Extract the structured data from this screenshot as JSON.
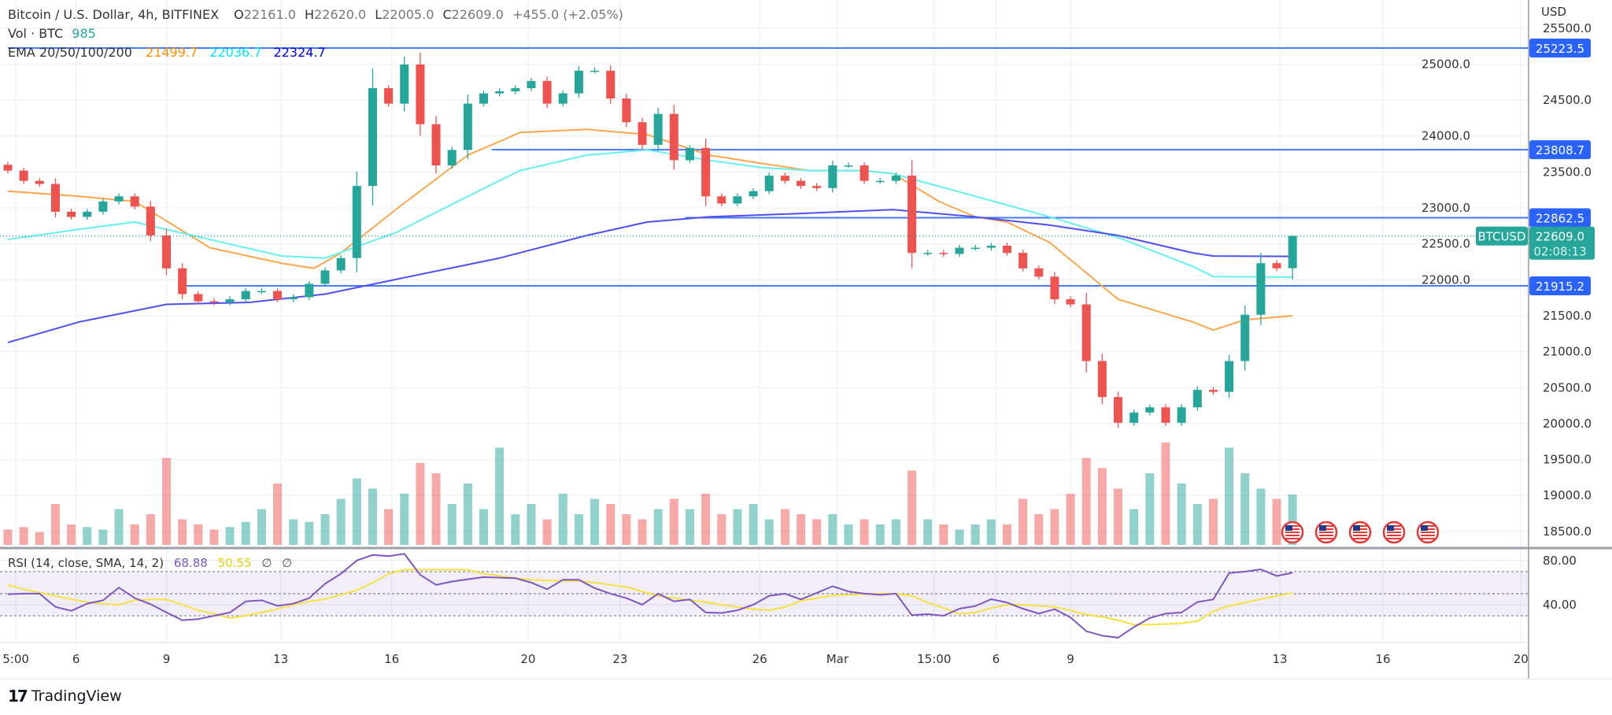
{
  "header": {
    "symbol_title": "Bitcoin / U.S. Dollar, 4h, BITFINEX",
    "open_label": "O",
    "open": "22161.0",
    "high_label": "H",
    "high": "22620.0",
    "low_label": "L",
    "low": "22005.0",
    "close_label": "C",
    "close": "22609.0",
    "change": "+455.0 (+2.05%)",
    "volume_label": "Vol · BTC",
    "volume": "985",
    "ema_label": "EMA 20/50/100/200",
    "ema_values": [
      "21499.7",
      "22036.7",
      "22324.7"
    ]
  },
  "rsi_legend": {
    "label": "RSI (14, close, SMA, 14, 2)",
    "rsi": "68.88",
    "sma": "50.55",
    "na1": "∅",
    "na2": "∅"
  },
  "price_axis": {
    "currency": "USD",
    "ticks": [
      "25500.0",
      "25000.0",
      "24500.0",
      "24000.0",
      "23500.0",
      "23000.0",
      "22500.0",
      "22000.0",
      "21500.0",
      "21000.0",
      "20500.0",
      "20000.0",
      "19500.0",
      "19000.0",
      "18500.0"
    ]
  },
  "rsi_axis": {
    "ticks": [
      "80.00",
      "40.00"
    ]
  },
  "current_price": {
    "symbol": "BTCUSD",
    "price": "22609.0",
    "countdown": "02:08:13"
  },
  "horizontal_levels": [
    {
      "price": "25223.5",
      "start_index": 0
    },
    {
      "price": "23808.7",
      "start_index": 30.5
    },
    {
      "price": "22862.5",
      "start_index": 42.7
    },
    {
      "price": "21915.2",
      "start_index": 11
    }
  ],
  "event_icons": {
    "icon": "us-flag-icon",
    "count": 5
  },
  "branding": {
    "logo_text": "TradingView"
  },
  "colors": {
    "up": "#26a69a",
    "down": "#ef5350",
    "ema20": "#ffa64d",
    "ema50": "#66f0f0",
    "ema200": "#5050f0",
    "ema20_label": "#ff8f00",
    "ema50_label": "#00e5ff",
    "ema200_label": "#0000ee",
    "level": "#2962ff",
    "rsi": "#7e57c2",
    "rsi_sma": "#f5e142"
  },
  "chart_data": {
    "type": "candlestick",
    "title": "Bitcoin / U.S. Dollar, 4h, BITFINEX",
    "ylabel": "USD",
    "ylim": [
      18300,
      25700
    ],
    "grid": true,
    "x_ticks": [
      {
        "label": "5:00",
        "index": 0.5
      },
      {
        "label": "6",
        "index": 4.3
      },
      {
        "label": "9",
        "index": 10
      },
      {
        "label": "13",
        "index": 17.2
      },
      {
        "label": "16",
        "index": 24.2
      },
      {
        "label": "20",
        "index": 32.8
      },
      {
        "label": "23",
        "index": 38.6
      },
      {
        "label": "26",
        "index": 47.4
      },
      {
        "label": "Mar",
        "index": 52.3
      },
      {
        "label": "15:00",
        "index": 58.4
      },
      {
        "label": "6",
        "index": 62.3
      },
      {
        "label": "9",
        "index": 67
      },
      {
        "label": "13",
        "index": 80.2
      },
      {
        "label": "16",
        "index": 86.7
      },
      {
        "label": "20",
        "index": 95.4
      }
    ],
    "candles": {
      "first_open": 23600,
      "close": [
        23519,
        23376,
        23333,
        22947,
        22875,
        22947,
        23090,
        23161,
        23018,
        22617,
        22159,
        21801,
        21701,
        21686,
        21729,
        21844,
        21844,
        21729,
        21758,
        21944,
        22130,
        22302,
        23305,
        24665,
        24450,
        24994,
        24164,
        23591,
        23806,
        24450,
        24593,
        24622,
        24665,
        24765,
        24450,
        24593,
        24908,
        24908,
        24522,
        24192,
        23877,
        24307,
        23663,
        23834,
        23161,
        23061,
        23161,
        23233,
        23448,
        23376,
        23305,
        23276,
        23591,
        23591,
        23376,
        23376,
        23448,
        22374,
        22374,
        22360,
        22446,
        22446,
        22474,
        22374,
        22159,
        22044,
        21729,
        21658,
        20870,
        20369,
        20011,
        20154,
        20226,
        20011,
        20226,
        20469,
        20441,
        20870,
        21514,
        22231,
        22159,
        22609
      ],
      "last": {
        "open": 22161.0,
        "high": 22620.0,
        "low": 22005.0,
        "close": 22609.0
      }
    },
    "volume": [
      300,
      350,
      250,
      800,
      400,
      350,
      300,
      700,
      400,
      600,
      1700,
      500,
      400,
      300,
      350,
      450,
      700,
      1200,
      500,
      450,
      600,
      900,
      1300,
      1100,
      700,
      1000,
      1600,
      1400,
      800,
      1200,
      700,
      1900,
      600,
      800,
      500,
      1000,
      600,
      900,
      800,
      600,
      500,
      700,
      900,
      700,
      1000,
      600,
      700,
      800,
      500,
      700,
      600,
      500,
      600,
      400,
      500,
      400,
      500,
      1450,
      500,
      400,
      300,
      400,
      500,
      400,
      900,
      600,
      700,
      1000,
      1700,
      1500,
      1100,
      700,
      1400,
      2000,
      1200,
      800,
      900,
      1900,
      1400,
      1100,
      900,
      985
    ],
    "ema": [
      {
        "name": "EMA 20",
        "points": [
          [
            0,
            23233
          ],
          [
            4.5,
            23161
          ],
          [
            8,
            23090
          ],
          [
            12.75,
            22445
          ],
          [
            17.25,
            22231
          ],
          [
            19.3,
            22159
          ],
          [
            21,
            22374
          ],
          [
            24.7,
            23018
          ],
          [
            29,
            23734
          ],
          [
            32.3,
            24049
          ],
          [
            36.5,
            24092
          ],
          [
            40.3,
            24020
          ],
          [
            44.2,
            23734
          ],
          [
            47.5,
            23620
          ],
          [
            50.5,
            23519
          ],
          [
            54,
            23519
          ],
          [
            55.8,
            23476
          ],
          [
            58.7,
            23090
          ],
          [
            61,
            22875
          ],
          [
            63,
            22803
          ],
          [
            65.7,
            22517
          ],
          [
            70,
            21729
          ],
          [
            74.7,
            21414
          ],
          [
            76,
            21300
          ],
          [
            78,
            21443
          ],
          [
            81,
            21499.7
          ]
        ]
      },
      {
        "name": "EMA 50",
        "points": [
          [
            0,
            22560
          ],
          [
            4.5,
            22703
          ],
          [
            8,
            22803
          ],
          [
            12.75,
            22560
          ],
          [
            17.25,
            22331
          ],
          [
            20,
            22302
          ],
          [
            24.5,
            22660
          ],
          [
            29,
            23161
          ],
          [
            32.3,
            23519
          ],
          [
            36.5,
            23734
          ],
          [
            40.3,
            23806
          ],
          [
            44.2,
            23662
          ],
          [
            47.5,
            23562
          ],
          [
            50.5,
            23519
          ],
          [
            54,
            23519
          ],
          [
            55.8,
            23476
          ],
          [
            61,
            23161
          ],
          [
            65.7,
            22875
          ],
          [
            70,
            22589
          ],
          [
            74.7,
            22188
          ],
          [
            76,
            22045
          ],
          [
            81,
            22036.7
          ]
        ]
      },
      {
        "name": "EMA 200",
        "points": [
          [
            0,
            21128
          ],
          [
            4.5,
            21414
          ],
          [
            10,
            21658
          ],
          [
            15.25,
            21686
          ],
          [
            20,
            21801
          ],
          [
            24.7,
            22016
          ],
          [
            31,
            22302
          ],
          [
            36.5,
            22617
          ],
          [
            40.3,
            22803
          ],
          [
            44.2,
            22875
          ],
          [
            49.5,
            22918
          ],
          [
            55.8,
            22976
          ],
          [
            61,
            22875
          ],
          [
            65.7,
            22760
          ],
          [
            70,
            22617
          ],
          [
            74.7,
            22374
          ],
          [
            76,
            22331
          ],
          [
            81,
            22324.7
          ]
        ]
      }
    ],
    "rsi": {
      "levels": [
        70,
        50,
        30
      ],
      "values": [
        49.5,
        50,
        50,
        38,
        34.5,
        41,
        44,
        55.5,
        46,
        40.5,
        33,
        26,
        27,
        30,
        33,
        43,
        44,
        39,
        41,
        46,
        59,
        68,
        80,
        85,
        84,
        86,
        67,
        58,
        61,
        63,
        65,
        64.5,
        64,
        60,
        54,
        62.6,
        62.6,
        55,
        50,
        46,
        40,
        50,
        43,
        44.8,
        33,
        32.5,
        35,
        40,
        48,
        50,
        44.8,
        50.7,
        56.7,
        52,
        50,
        49,
        50,
        30.5,
        31.5,
        30,
        36.4,
        38.8,
        45,
        42,
        36.4,
        32,
        36,
        28.5,
        16,
        12,
        10.2,
        19.8,
        28,
        32,
        33,
        42.4,
        44.8,
        68.6,
        70,
        72,
        66,
        68.88
      ],
      "sma": [
        57.9,
        54,
        51,
        48,
        45,
        42.4,
        41,
        40,
        44,
        44.8,
        44.8,
        40,
        35,
        31.7,
        28,
        30,
        33,
        36,
        40,
        43,
        45,
        49,
        53,
        60,
        68,
        71.7,
        71.7,
        71.7,
        71.7,
        71.7,
        68,
        66,
        64,
        62.6,
        62,
        61.6,
        61.4,
        60,
        58,
        56,
        52,
        48,
        46,
        44,
        42.4,
        40,
        38,
        36,
        35,
        38,
        43.6,
        46,
        48.3,
        49,
        49.5,
        50,
        50,
        48,
        42,
        37,
        31.7,
        33,
        37,
        40,
        40,
        39,
        38,
        35,
        31,
        29,
        26,
        22,
        22,
        22.5,
        23.3,
        25,
        34,
        39,
        42,
        45,
        48,
        50.55
      ]
    }
  }
}
